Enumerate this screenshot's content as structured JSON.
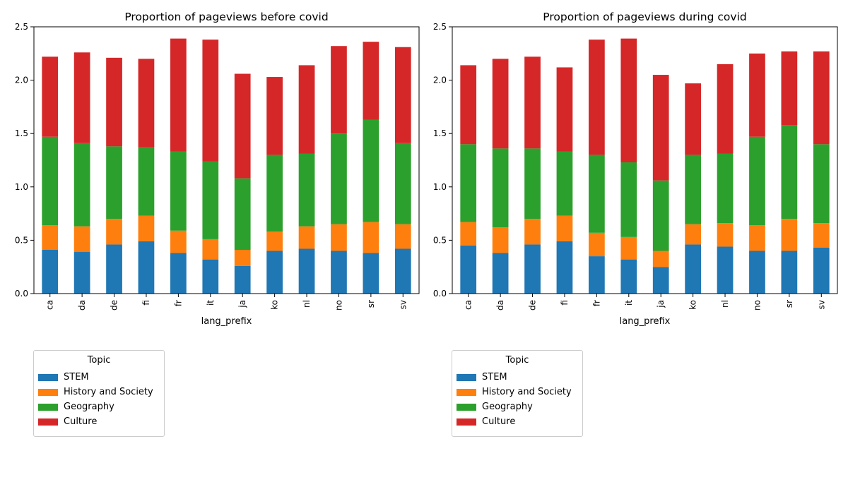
{
  "chart_data": [
    {
      "type": "bar",
      "stacked": true,
      "title": "Proportion of pageviews before covid",
      "xlabel": "lang_prefix",
      "ylabel": "",
      "ylim": [
        0,
        2.5
      ],
      "yticks": [
        "0.0",
        "0.5",
        "1.0",
        "1.5",
        "2.0",
        "2.5"
      ],
      "categories": [
        "ca",
        "da",
        "de",
        "fi",
        "fr",
        "it",
        "ja",
        "ko",
        "nl",
        "no",
        "sr",
        "sv"
      ],
      "legend_title": "Topic",
      "legend_position": "below-left",
      "series": [
        {
          "name": "STEM",
          "color": "#1f77b4",
          "values": [
            0.41,
            0.39,
            0.46,
            0.49,
            0.38,
            0.32,
            0.26,
            0.4,
            0.42,
            0.4,
            0.38,
            0.42
          ]
        },
        {
          "name": "History and Society",
          "color": "#ff7f0e",
          "values": [
            0.23,
            0.24,
            0.24,
            0.24,
            0.21,
            0.19,
            0.15,
            0.18,
            0.21,
            0.25,
            0.29,
            0.23
          ]
        },
        {
          "name": "Geography",
          "color": "#2ca02c",
          "values": [
            0.83,
            0.78,
            0.68,
            0.64,
            0.74,
            0.73,
            0.67,
            0.72,
            0.68,
            0.85,
            0.96,
            0.76
          ]
        },
        {
          "name": "Culture",
          "color": "#d62728",
          "values": [
            0.75,
            0.85,
            0.83,
            0.83,
            1.06,
            1.14,
            0.98,
            0.73,
            0.83,
            0.82,
            0.73,
            0.9
          ]
        }
      ]
    },
    {
      "type": "bar",
      "stacked": true,
      "title": "Proportion of pageviews during covid",
      "xlabel": "lang_prefix",
      "ylabel": "",
      "ylim": [
        0,
        2.5
      ],
      "yticks": [
        "0.0",
        "0.5",
        "1.0",
        "1.5",
        "2.0",
        "2.5"
      ],
      "categories": [
        "ca",
        "da",
        "de",
        "fi",
        "fr",
        "it",
        "ja",
        "ko",
        "nl",
        "no",
        "sr",
        "sv"
      ],
      "legend_title": "Topic",
      "legend_position": "below-left",
      "series": [
        {
          "name": "STEM",
          "color": "#1f77b4",
          "values": [
            0.45,
            0.38,
            0.46,
            0.49,
            0.35,
            0.32,
            0.25,
            0.46,
            0.44,
            0.4,
            0.4,
            0.43
          ]
        },
        {
          "name": "History and Society",
          "color": "#ff7f0e",
          "values": [
            0.22,
            0.24,
            0.24,
            0.24,
            0.22,
            0.21,
            0.15,
            0.19,
            0.22,
            0.24,
            0.3,
            0.23
          ]
        },
        {
          "name": "Geography",
          "color": "#2ca02c",
          "values": [
            0.73,
            0.74,
            0.66,
            0.6,
            0.73,
            0.7,
            0.66,
            0.65,
            0.65,
            0.83,
            0.88,
            0.74
          ]
        },
        {
          "name": "Culture",
          "color": "#d62728",
          "values": [
            0.74,
            0.84,
            0.86,
            0.79,
            1.08,
            1.16,
            0.99,
            0.67,
            0.84,
            0.78,
            0.69,
            0.87
          ]
        }
      ]
    }
  ]
}
